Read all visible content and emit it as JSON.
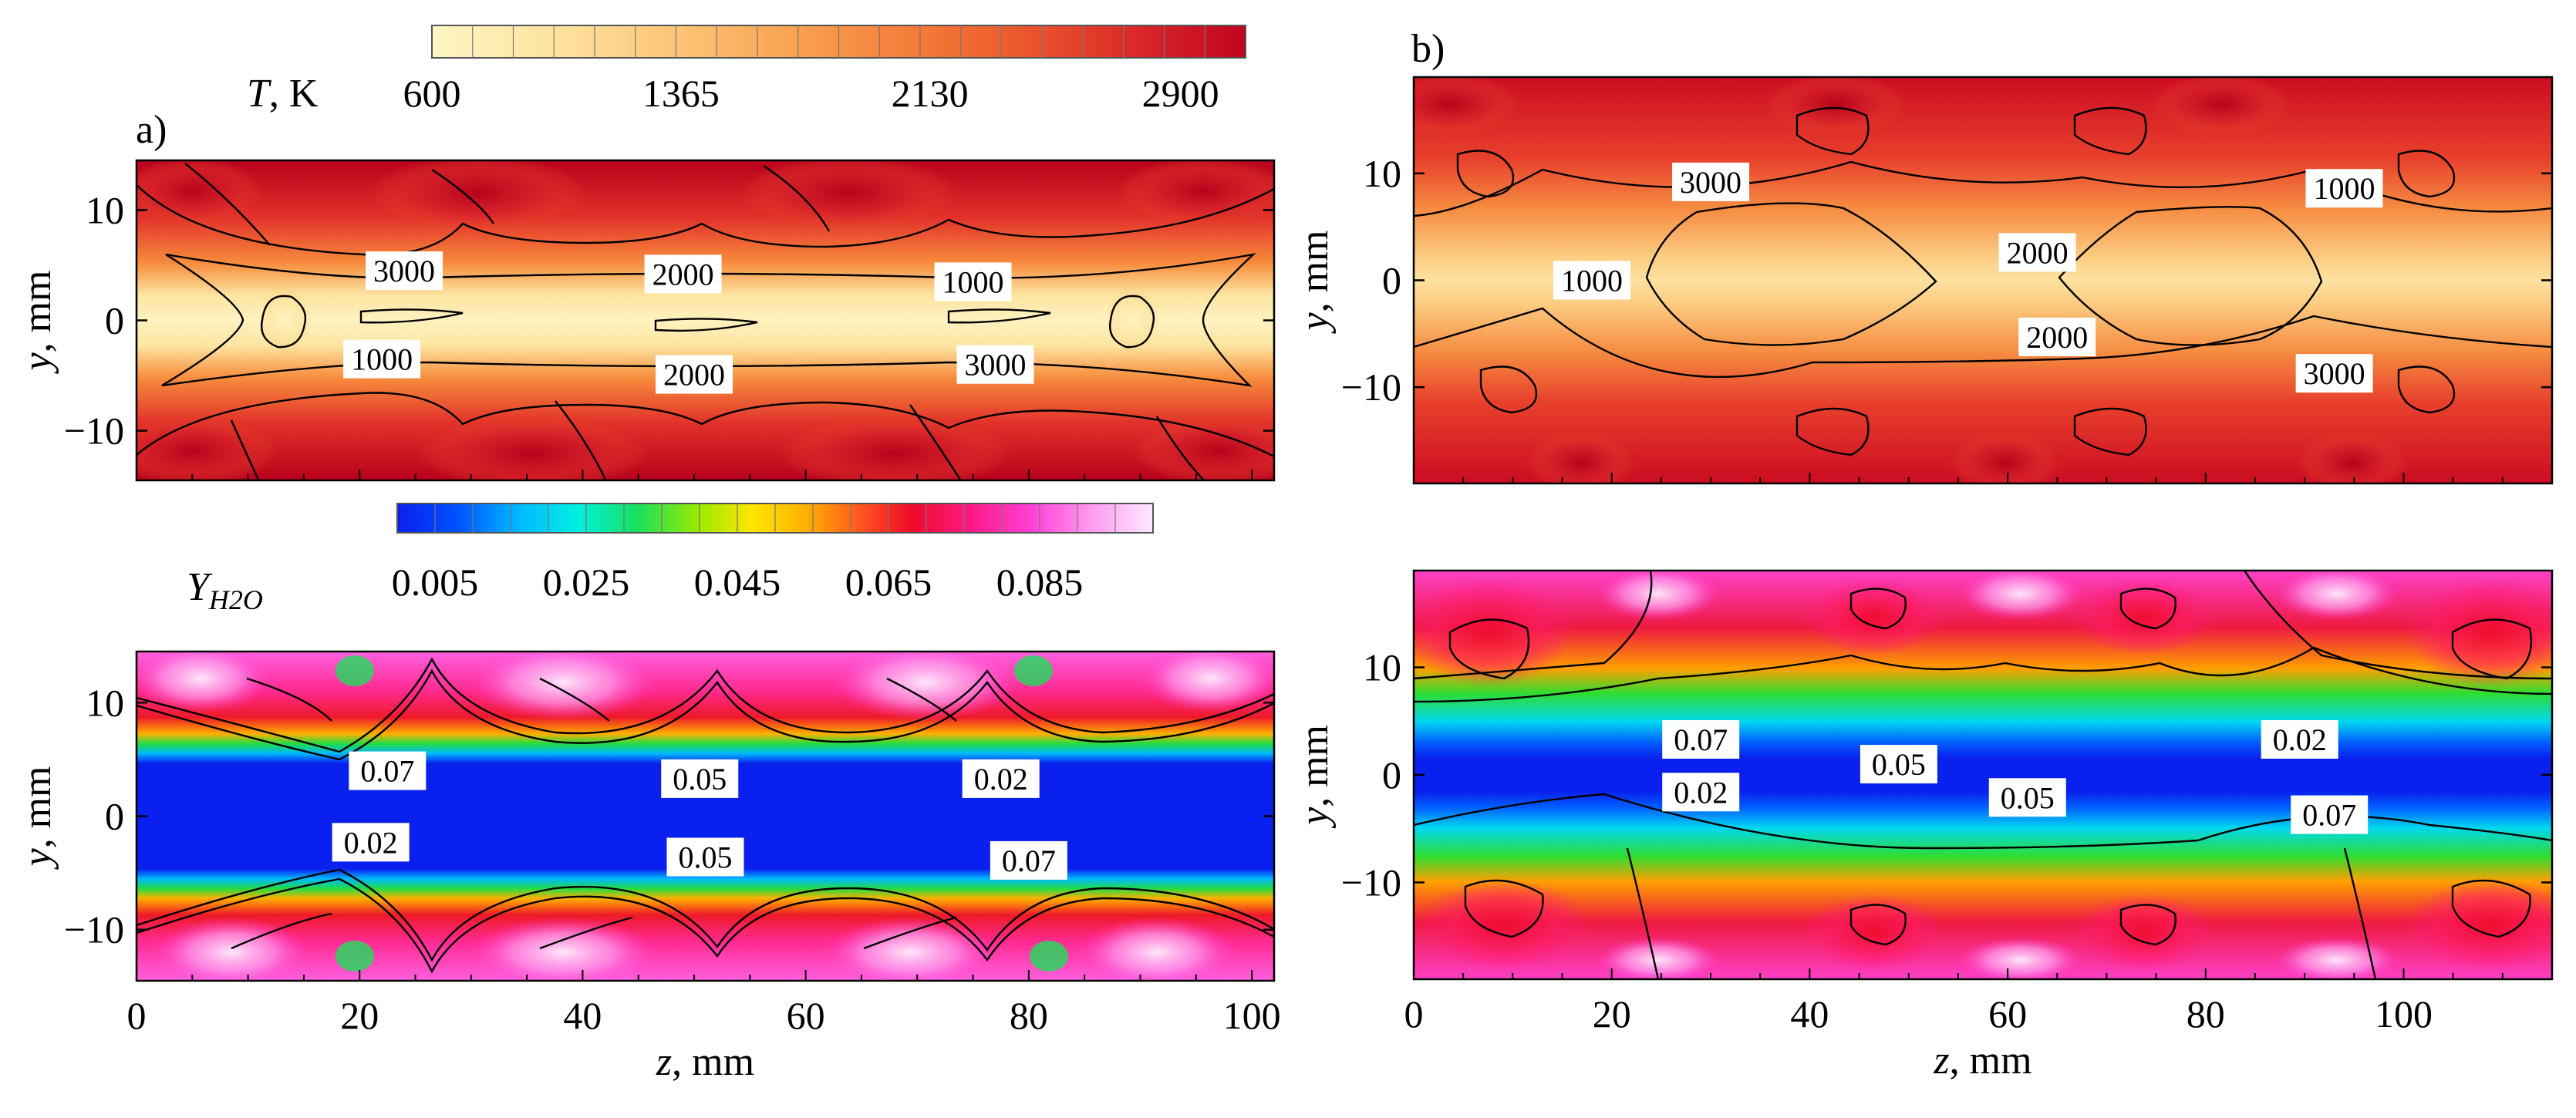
{
  "colors": {
    "temperature_scale": [
      "#fff6c4",
      "#fde4a0",
      "#fcc577",
      "#f9a050",
      "#f47a37",
      "#e9502b",
      "#d8232a",
      "#c0051e"
    ],
    "water_scale": [
      "#0a20ee",
      "#0052ff",
      "#00b8ff",
      "#00f0e0",
      "#1be05a",
      "#9dea00",
      "#ffe600",
      "#ffb000",
      "#ff5a1e",
      "#ee0a28",
      "#ff1a88",
      "#ff40d8",
      "#ff9cf0",
      "#ffe8ff"
    ],
    "contour_line": "#000000",
    "label_box": "#ffffff"
  },
  "colorbars": {
    "temperature": {
      "label_main": "T",
      "label_unit": ", K",
      "ticks": [
        "600",
        "1365",
        "2130",
        "2900"
      ],
      "tick_values": [
        600,
        1365,
        2130,
        2900
      ],
      "range": [
        600,
        3100
      ]
    },
    "water": {
      "label_main": "Y",
      "label_sub": "H2O",
      "ticks": [
        "0.005",
        "0.025",
        "0.045",
        "0.065",
        "0.085"
      ],
      "tick_values": [
        0.005,
        0.025,
        0.045,
        0.065,
        0.085
      ],
      "range": [
        0.0,
        0.1
      ]
    }
  },
  "panels": {
    "a": {
      "letter": "a)"
    },
    "b": {
      "letter": "b)"
    }
  },
  "chart_data": [
    {
      "type": "heatmap",
      "panel": "a",
      "quantity": "T",
      "xlabel": "",
      "ylabel": "y, mm",
      "xlim": [
        0,
        102
      ],
      "ylim": [
        -14.5,
        14.5
      ],
      "yticks": [
        -10,
        0,
        10
      ],
      "ytick_labels": [
        "−10",
        "0",
        "10"
      ],
      "contour_labels": [
        {
          "text": "3000",
          "x": 24,
          "y": 4.5
        },
        {
          "text": "2000",
          "x": 49,
          "y": 4.2
        },
        {
          "text": "1000",
          "x": 75,
          "y": 3.5
        },
        {
          "text": "1000",
          "x": 22,
          "y": -3.5
        },
        {
          "text": "2000",
          "x": 50,
          "y": -4.9
        },
        {
          "text": "3000",
          "x": 77,
          "y": -4.0
        }
      ]
    },
    {
      "type": "heatmap",
      "panel": "a",
      "quantity": "Y_H2O",
      "xlabel": "z, mm",
      "ylabel": "y, mm",
      "xlim": [
        0,
        102
      ],
      "ylim": [
        -14.5,
        14.5
      ],
      "xticks": [
        0,
        20,
        40,
        60,
        80,
        100
      ],
      "xtick_labels": [
        "0",
        "20",
        "40",
        "60",
        "80",
        "100"
      ],
      "yticks": [
        -10,
        0,
        10
      ],
      "ytick_labels": [
        "−10",
        "0",
        "10"
      ],
      "contour_labels": [
        {
          "text": "0.07",
          "x": 22.5,
          "y": 4.0
        },
        {
          "text": "0.05",
          "x": 50.5,
          "y": 3.3
        },
        {
          "text": "0.02",
          "x": 77.5,
          "y": 3.3
        },
        {
          "text": "0.02",
          "x": 21,
          "y": -2.3
        },
        {
          "text": "0.05",
          "x": 51,
          "y": -3.6
        },
        {
          "text": "0.07",
          "x": 80,
          "y": -3.9
        }
      ]
    },
    {
      "type": "heatmap",
      "panel": "b",
      "quantity": "T",
      "xlabel": "",
      "ylabel": "y, mm",
      "xlim": [
        0,
        115
      ],
      "ylim": [
        -19,
        19
      ],
      "yticks": [
        -10,
        0,
        10
      ],
      "ytick_labels": [
        "−10",
        "0",
        "10"
      ],
      "contour_labels": [
        {
          "text": "3000",
          "x": 30,
          "y": 9.2
        },
        {
          "text": "1000",
          "x": 94,
          "y": 8.6
        },
        {
          "text": "2000",
          "x": 63,
          "y": 2.6
        },
        {
          "text": "1000",
          "x": 18,
          "y": 0.0
        },
        {
          "text": "2000",
          "x": 65,
          "y": -5.3
        },
        {
          "text": "3000",
          "x": 93,
          "y": -8.7
        }
      ]
    },
    {
      "type": "heatmap",
      "panel": "b",
      "quantity": "Y_H2O",
      "xlabel": "z, mm",
      "ylabel": "y, mm",
      "xlim": [
        0,
        115
      ],
      "ylim": [
        -19,
        19
      ],
      "xticks": [
        0,
        20,
        40,
        60,
        80,
        100
      ],
      "xtick_labels": [
        "0",
        "20",
        "40",
        "60",
        "80",
        "100"
      ],
      "yticks": [
        -10,
        0,
        10
      ],
      "ytick_labels": [
        "−10",
        "0",
        "10"
      ],
      "contour_labels": [
        {
          "text": "0.07",
          "x": 29,
          "y": 3.3
        },
        {
          "text": "0.02",
          "x": 89.5,
          "y": 3.3
        },
        {
          "text": "0.05",
          "x": 49,
          "y": 1.0
        },
        {
          "text": "0.02",
          "x": 29,
          "y": -1.6
        },
        {
          "text": "0.05",
          "x": 62,
          "y": -2.1
        },
        {
          "text": "0.07",
          "x": 92.5,
          "y": -3.7
        }
      ]
    }
  ]
}
